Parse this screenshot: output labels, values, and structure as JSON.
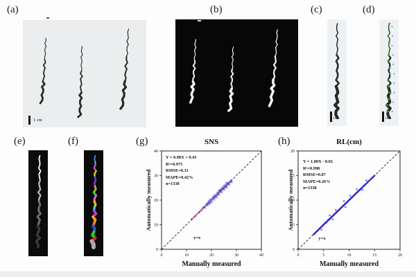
{
  "figure": {
    "panels": [
      {
        "id": "a",
        "label": "(a)",
        "scale_bar": "1 cm"
      },
      {
        "id": "b",
        "label": "(b)"
      },
      {
        "id": "c",
        "label": "(c)",
        "scale_bar": "1cm"
      },
      {
        "id": "d",
        "label": "(d)",
        "scale_bar": "1cm"
      },
      {
        "id": "e",
        "label": "(e)"
      },
      {
        "id": "f",
        "label": "(f)"
      },
      {
        "id": "g",
        "label": "(g)"
      },
      {
        "id": "h",
        "label": "(h)"
      }
    ],
    "colors": {
      "root_dark": "#262b25",
      "root_white": "#f2f2f2",
      "panel_light_bg": "#edeff2",
      "panel_dark_bg": "#070707",
      "node_marker_green": "#2fae2f",
      "annotation_blue": "#5f6fe0",
      "gray_shades": [
        "#ededed",
        "#b5b5b5",
        "#6e6e6e",
        "#3a3a3a"
      ],
      "segment_colors": [
        "#4a7cf5",
        "#22c8e0",
        "#d94fd0",
        "#e3c81f",
        "#2d4fe0",
        "#8c2fd9",
        "#b5b021",
        "#3ecb35",
        "#e659d8",
        "#d4c520",
        "#27d3d3",
        "#c23bd4",
        "#f2a71b",
        "#ef7d12",
        "#2b51f0",
        "#2ecb2e",
        "#e01f1f",
        "#a9a9a9"
      ]
    }
  },
  "chart_data": [
    {
      "type": "scatter",
      "panel": "g",
      "title": "SNS",
      "xlabel": "Manually measured",
      "ylabel": "Automatically measured",
      "xlim": [
        0,
        40
      ],
      "ylim": [
        0,
        40
      ],
      "xticks": [
        0,
        10,
        20,
        30,
        40
      ],
      "yticks": [
        0,
        10,
        20,
        30,
        40
      ],
      "grid": false,
      "stats": [
        "Y = 0.98X + 0.45",
        "R²=0.975",
        "RMSE=0.31",
        "MAPE=0.42%",
        "n=1338"
      ],
      "identity_label": "y=x",
      "identity_label_pos": [
        12.8,
        4.2
      ],
      "regression": {
        "x1": 12,
        "y1": 12.21,
        "x2": 28,
        "y2": 27.89,
        "color": "#e03020"
      },
      "point_color": "#1f1fd9",
      "marker": "square",
      "band": false,
      "points": [
        [
          12.1,
          12.2
        ],
        [
          13.6,
          13.5
        ],
        [
          15.1,
          15.0
        ],
        [
          16.0,
          15.8
        ],
        [
          16.6,
          16.9
        ],
        [
          17.0,
          17.3
        ],
        [
          17.4,
          16.9
        ],
        [
          17.9,
          18.1
        ],
        [
          18.2,
          18.8
        ],
        [
          18.4,
          17.9
        ],
        [
          18.9,
          19.1
        ],
        [
          19.0,
          19.8
        ],
        [
          19.4,
          18.9
        ],
        [
          19.7,
          20.3
        ],
        [
          20.0,
          20.0
        ],
        [
          20.1,
          19.2
        ],
        [
          20.4,
          20.7
        ],
        [
          20.8,
          21.5
        ],
        [
          21.0,
          21.0
        ],
        [
          21.1,
          20.2
        ],
        [
          21.3,
          22.0
        ],
        [
          21.6,
          21.2
        ],
        [
          22.0,
          22.1
        ],
        [
          22.1,
          21.3
        ],
        [
          22.3,
          23.0
        ],
        [
          22.6,
          22.4
        ],
        [
          22.9,
          23.1
        ],
        [
          23.0,
          22.2
        ],
        [
          23.2,
          24.0
        ],
        [
          23.5,
          23.4
        ],
        [
          23.8,
          24.5
        ],
        [
          24.0,
          24.0
        ],
        [
          24.1,
          23.2
        ],
        [
          24.3,
          25.0
        ],
        [
          24.6,
          24.5
        ],
        [
          24.9,
          25.7
        ],
        [
          25.0,
          25.0
        ],
        [
          25.1,
          24.3
        ],
        [
          25.4,
          26.0
        ],
        [
          25.7,
          25.4
        ],
        [
          26.0,
          26.1
        ],
        [
          26.1,
          25.2
        ],
        [
          26.4,
          27.0
        ],
        [
          26.6,
          26.5
        ],
        [
          27.0,
          27.1
        ],
        [
          27.1,
          26.3
        ],
        [
          27.5,
          27.6
        ],
        [
          27.9,
          28.0
        ],
        [
          28.1,
          27.3
        ],
        [
          25.9,
          26.9
        ],
        [
          23.1,
          23.8
        ],
        [
          19.1,
          18.4
        ]
      ]
    },
    {
      "type": "scatter",
      "panel": "h",
      "title": "RL(cm)",
      "xlabel": "Manually measured",
      "ylabel": "Automatically measured",
      "xlim": [
        0,
        20
      ],
      "ylim": [
        0,
        20
      ],
      "xticks": [
        0,
        5,
        10,
        15,
        20
      ],
      "yticks": [
        0,
        5,
        10,
        15,
        20
      ],
      "grid": false,
      "stats": [
        "Y = 1.00X - 0.02",
        "R²=0.998",
        "RMSE=0.07",
        "MAPE=0.26%",
        "n=1338"
      ],
      "identity_label": "y=x",
      "identity_label_pos": [
        4.0,
        2.0
      ],
      "regression": {
        "x1": 3,
        "y1": 2.98,
        "x2": 15,
        "y2": 14.98,
        "color": "#e03020"
      },
      "point_color": "#1f1fd9",
      "marker": "circle",
      "band": true,
      "band_range": [
        3,
        15
      ],
      "points": [
        [
          3.0,
          3.0
        ],
        [
          3.3,
          3.2
        ],
        [
          3.6,
          3.6
        ],
        [
          3.9,
          3.8
        ],
        [
          4.2,
          4.2
        ],
        [
          4.5,
          4.5
        ],
        [
          4.6,
          4.0
        ],
        [
          4.8,
          4.8
        ],
        [
          5.0,
          5.0
        ],
        [
          5.2,
          5.3
        ],
        [
          5.4,
          5.4
        ],
        [
          5.6,
          5.5
        ],
        [
          5.8,
          5.9
        ],
        [
          6.0,
          6.0
        ],
        [
          6.2,
          6.9
        ],
        [
          6.2,
          6.1
        ],
        [
          6.4,
          6.4
        ],
        [
          6.6,
          6.6
        ],
        [
          6.8,
          6.1
        ],
        [
          6.8,
          6.8
        ],
        [
          7.0,
          7.0
        ],
        [
          7.2,
          7.2
        ],
        [
          7.4,
          8.0
        ],
        [
          7.4,
          7.4
        ],
        [
          7.6,
          7.6
        ],
        [
          7.8,
          7.8
        ],
        [
          8.0,
          8.0
        ],
        [
          8.2,
          8.2
        ],
        [
          8.4,
          8.4
        ],
        [
          8.6,
          8.6
        ],
        [
          8.8,
          8.8
        ],
        [
          9.0,
          9.8
        ],
        [
          9.0,
          9.0
        ],
        [
          9.2,
          9.2
        ],
        [
          9.3,
          8.6
        ],
        [
          9.4,
          9.4
        ],
        [
          9.6,
          9.6
        ],
        [
          9.8,
          9.8
        ],
        [
          10.0,
          10.0
        ],
        [
          10.2,
          10.9
        ],
        [
          10.2,
          10.2
        ],
        [
          10.4,
          10.4
        ],
        [
          10.6,
          10.6
        ],
        [
          10.8,
          10.8
        ],
        [
          11.0,
          11.0
        ],
        [
          11.2,
          11.2
        ],
        [
          11.4,
          11.4
        ],
        [
          11.5,
          12.2
        ],
        [
          11.6,
          11.6
        ],
        [
          11.8,
          11.8
        ],
        [
          12.0,
          12.0
        ],
        [
          12.2,
          12.2
        ],
        [
          12.4,
          12.4
        ],
        [
          12.6,
          12.1
        ],
        [
          12.8,
          12.8
        ],
        [
          13.0,
          13.0
        ],
        [
          13.2,
          13.2
        ],
        [
          13.4,
          14.0
        ],
        [
          13.6,
          13.6
        ],
        [
          14.0,
          14.0
        ],
        [
          14.4,
          14.4
        ],
        [
          14.7,
          14.7
        ],
        [
          15.0,
          15.0
        ]
      ]
    }
  ]
}
